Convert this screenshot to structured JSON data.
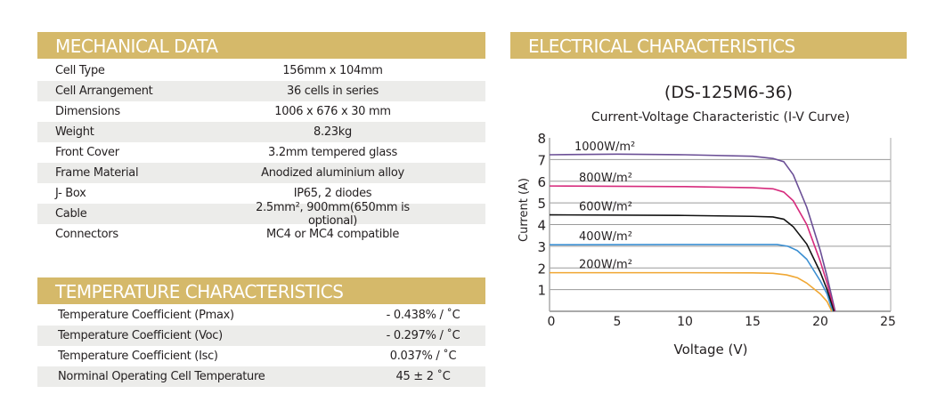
{
  "mechanical": {
    "title": "MECHANICAL DATA",
    "rows": [
      {
        "k": "Cell Type",
        "v": "156mm x 104mm"
      },
      {
        "k": "Cell Arrangement",
        "v": "36 cells in series"
      },
      {
        "k": "Dimensions",
        "v": "1006 x 676 x 30 mm"
      },
      {
        "k": "Weight",
        "v": "8.23kg"
      },
      {
        "k": "Front Cover",
        "v": "3.2mm tempered glass"
      },
      {
        "k": "Frame Material",
        "v": "Anodized aluminium alloy"
      },
      {
        "k": "J- Box",
        "v": "IP65, 2 diodes"
      },
      {
        "k": "Cable",
        "v": "2.5mm², 900mm(650mm is optional)"
      },
      {
        "k": "Connectors",
        "v": "MC4 or MC4 compatible"
      }
    ]
  },
  "temperature": {
    "title": "TEMPERATURE CHARACTERISTICS",
    "rows": [
      {
        "k": "Temperature Coefficient (Pmax)",
        "v": "- 0.438% / ˚C"
      },
      {
        "k": "Temperature Coefficient (Voc)",
        "v": "- 0.297% / ˚C"
      },
      {
        "k": "Temperature Coefficient (Isc)",
        "v": "0.037% / ˚C"
      },
      {
        "k": "Norminal Operating Cell Temperature",
        "v": "45 ± 2 ˚C"
      }
    ]
  },
  "electrical": {
    "title": "ELECTRICAL CHARACTERISTICS"
  },
  "colors": {
    "header": "#d5b96a"
  },
  "chart_data": {
    "type": "line",
    "title": "(DS-125M6-36)",
    "subtitle": "Current-Voltage Characteristic (I-V Curve)",
    "xlabel": "Voltage (V)",
    "ylabel": "Current (A)",
    "xlim": [
      0,
      25
    ],
    "ylim": [
      0,
      8
    ],
    "xticks": [
      "0",
      "5",
      "10",
      "15",
      "20",
      "25"
    ],
    "yticks": [
      "1",
      "2",
      "3",
      "4",
      "5",
      "6",
      "7",
      "8"
    ],
    "grid": true,
    "series": [
      {
        "name": "1000W/m²",
        "color": "#6b4f96",
        "points": [
          [
            0,
            7.22
          ],
          [
            5,
            7.25
          ],
          [
            10,
            7.22
          ],
          [
            15,
            7.15
          ],
          [
            16.5,
            7.05
          ],
          [
            17.3,
            6.9
          ],
          [
            18,
            6.3
          ],
          [
            19,
            4.8
          ],
          [
            20,
            2.8
          ],
          [
            20.5,
            1.6
          ],
          [
            21.1,
            0
          ]
        ]
      },
      {
        "name": "800W/m²",
        "color": "#d62a7c",
        "points": [
          [
            0,
            5.78
          ],
          [
            10,
            5.75
          ],
          [
            15,
            5.7
          ],
          [
            16.5,
            5.65
          ],
          [
            17.3,
            5.5
          ],
          [
            18,
            5.1
          ],
          [
            19,
            4.0
          ],
          [
            20,
            2.3
          ],
          [
            20.5,
            1.3
          ],
          [
            21.05,
            0
          ]
        ]
      },
      {
        "name": "600W/m²",
        "color": "#111111",
        "points": [
          [
            0,
            4.45
          ],
          [
            10,
            4.42
          ],
          [
            15,
            4.38
          ],
          [
            16.5,
            4.35
          ],
          [
            17.3,
            4.25
          ],
          [
            18,
            3.9
          ],
          [
            19,
            3.1
          ],
          [
            20,
            1.8
          ],
          [
            20.5,
            1.0
          ],
          [
            21,
            0
          ]
        ]
      },
      {
        "name": "400W/m²",
        "color": "#3b8fd2",
        "points": [
          [
            0,
            3.07
          ],
          [
            10,
            3.08
          ],
          [
            15,
            3.08
          ],
          [
            16.8,
            3.08
          ],
          [
            17.6,
            3.0
          ],
          [
            18.3,
            2.8
          ],
          [
            19,
            2.4
          ],
          [
            20,
            1.4
          ],
          [
            20.5,
            0.8
          ],
          [
            20.9,
            0
          ]
        ]
      },
      {
        "name": "200W/m²",
        "color": "#f0a733",
        "points": [
          [
            0,
            1.78
          ],
          [
            10,
            1.78
          ],
          [
            15,
            1.77
          ],
          [
            16.5,
            1.75
          ],
          [
            17.5,
            1.68
          ],
          [
            18.3,
            1.55
          ],
          [
            19,
            1.3
          ],
          [
            20,
            0.8
          ],
          [
            20.5,
            0.45
          ],
          [
            20.85,
            0
          ]
        ]
      }
    ]
  }
}
